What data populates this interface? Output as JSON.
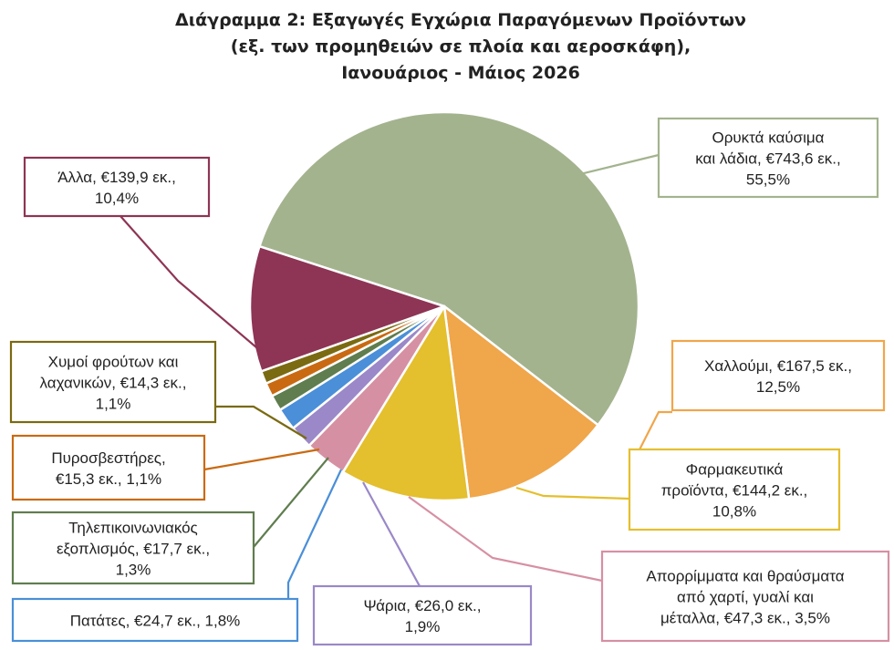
{
  "chart_data": {
    "type": "pie",
    "title": [
      "Διάγραμμα 2: Εξαγωγές Εγχώρια Παραγόμενων Προϊόντων",
      "(εξ. των προμηθειών σε πλοία και αεροσκάφη),",
      "Ιανουάριος - Μάιος 2026"
    ],
    "unit": "€ εκ.",
    "slices": [
      {
        "name": "Ορυκτά καύσιμα και λάδια",
        "value": 743.6,
        "percent": 55.5,
        "color": "#a3b38e",
        "label_lines": [
          "Ορυκτά καύσιμα",
          "και λάδια, €743,6 εκ.,",
          "55,5%"
        ]
      },
      {
        "name": "Χαλλούμι",
        "value": 167.5,
        "percent": 12.5,
        "color": "#f0a64a",
        "label_lines": [
          "Χαλλούμι, €167,5 εκ.,",
          "12,5%"
        ]
      },
      {
        "name": "Φαρμακευτικά προϊόντα",
        "value": 144.2,
        "percent": 10.8,
        "color": "#e4bf2e",
        "label_lines": [
          "Φαρμακευτικά",
          "προϊόντα, €144,2 εκ.,",
          "10,8%"
        ]
      },
      {
        "name": "Απορρίμματα και θραύσματα από χαρτί, γυαλί και μέταλλα",
        "value": 47.3,
        "percent": 3.5,
        "color": "#d690a3",
        "label_lines": [
          "Απορρίμματα και θραύσματα",
          "από χαρτί, γυαλί και",
          "μέταλλα, €47,3 εκ., 3,5%"
        ]
      },
      {
        "name": "Ψάρια",
        "value": 26.0,
        "percent": 1.9,
        "color": "#9a88c8",
        "label_lines": [
          "Ψάρια, €26,0 εκ.,",
          "1,9%"
        ]
      },
      {
        "name": "Πατάτες",
        "value": 24.7,
        "percent": 1.8,
        "color": "#4a8fd8",
        "label_lines": [
          "Πατάτες, €24,7 εκ., 1,8%"
        ]
      },
      {
        "name": "Τηλεπικοινωνιακός εξοπλισμός",
        "value": 17.7,
        "percent": 1.3,
        "color": "#5f7d4e",
        "label_lines": [
          "Τηλεπικοινωνιακός",
          "εξοπλισμός, €17,7 εκ.,",
          "1,3%"
        ]
      },
      {
        "name": "Πυροσβεστήρες",
        "value": 15.3,
        "percent": 1.1,
        "color": "#c96a12",
        "label_lines": [
          "Πυροσβεστήρες,",
          "€15,3 εκ., 1,1%"
        ]
      },
      {
        "name": "Χυμοί φρούτων και λαχανικών",
        "value": 14.3,
        "percent": 1.1,
        "color": "#7a6a12",
        "label_lines": [
          "Χυμοί φρούτων και",
          "λαχανικών, €14,3 εκ.,",
          "1,1%"
        ]
      },
      {
        "name": "Άλλα",
        "value": 139.9,
        "percent": 10.4,
        "color": "#8e3455",
        "label_lines": [
          "Άλλα, €139,9 εκ.,",
          "10,4%"
        ]
      }
    ]
  }
}
